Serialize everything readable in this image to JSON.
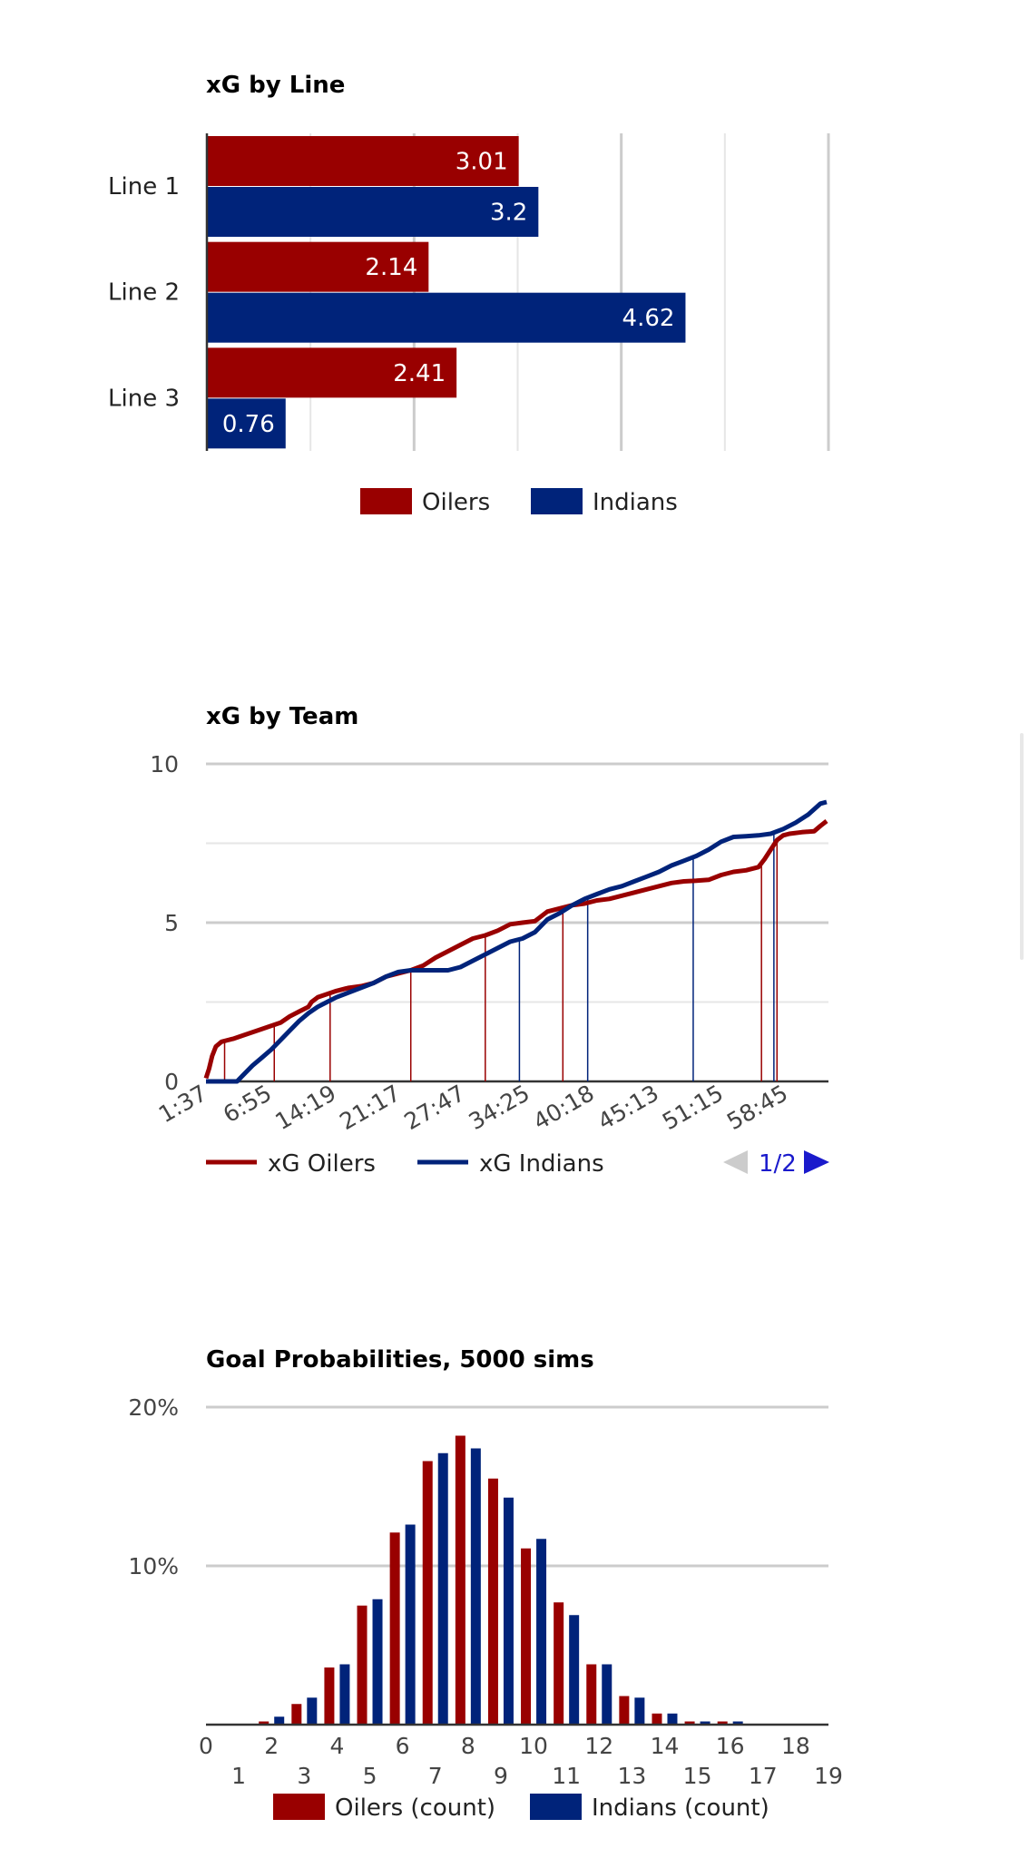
{
  "colors": {
    "oilers": "#990000",
    "indians": "#00237a",
    "grid": "#cccccc",
    "grid_minor": "#e6e6e6",
    "pager_active": "#1a1acc",
    "pager_disabled": "#cccccc"
  },
  "charts": {
    "line_chart": {
      "title": "xG by Line",
      "legend": [
        "Oilers",
        "Indians"
      ]
    },
    "team_chart": {
      "title": "xG by Team",
      "legend": [
        "xG Oilers",
        "xG Indians"
      ],
      "pager": {
        "label": "1/2",
        "prev_icon": "triangle-left-icon",
        "next_icon": "triangle-right-icon"
      }
    },
    "goal_chart": {
      "title": "Goal Probabilities, 5000 sims",
      "legend": [
        "Oilers (count)",
        "Indians (count)"
      ]
    }
  },
  "chart_data": [
    {
      "type": "bar",
      "orientation": "horizontal",
      "title": "xG by Line",
      "categories": [
        "Line 1",
        "Line 2",
        "Line 3"
      ],
      "series": [
        {
          "name": "Oilers",
          "values": [
            3.01,
            2.14,
            2.41
          ]
        },
        {
          "name": "Indians",
          "values": [
            3.2,
            4.62,
            0.76
          ]
        }
      ],
      "xlim": [
        0,
        6
      ],
      "grid": true,
      "legend_position": "bottom"
    },
    {
      "type": "line",
      "title": "xG by Team",
      "x_tick_labels": [
        "1:37",
        "6:55",
        "14:19",
        "21:17",
        "27:47",
        "34:25",
        "40:18",
        "45:13",
        "51:15",
        "58:45"
      ],
      "ylim": [
        0,
        10
      ],
      "y_ticks": [
        0,
        5,
        10
      ],
      "grid": true,
      "legend_position": "bottom",
      "series": [
        {
          "name": "xG Oilers",
          "points": [
            [
              0,
              0.1
            ],
            [
              0.5,
              0.4
            ],
            [
              1,
              0.8
            ],
            [
              1.6,
              1.1
            ],
            [
              2.5,
              1.25
            ],
            [
              3.5,
              1.3
            ],
            [
              4.5,
              1.35
            ],
            [
              6,
              1.45
            ],
            [
              7.5,
              1.55
            ],
            [
              9,
              1.65
            ],
            [
              10.5,
              1.75
            ],
            [
              12,
              1.85
            ],
            [
              13.5,
              2.05
            ],
            [
              15,
              2.2
            ],
            [
              16.5,
              2.35
            ],
            [
              17,
              2.5
            ],
            [
              18,
              2.65
            ],
            [
              19.5,
              2.75
            ],
            [
              21,
              2.85
            ],
            [
              23,
              2.95
            ],
            [
              25,
              3.0
            ],
            [
              27,
              3.1
            ],
            [
              29,
              3.3
            ],
            [
              31,
              3.4
            ],
            [
              33,
              3.5
            ],
            [
              35,
              3.65
            ],
            [
              37,
              3.9
            ],
            [
              39,
              4.1
            ],
            [
              41,
              4.3
            ],
            [
              43,
              4.5
            ],
            [
              45,
              4.6
            ],
            [
              47,
              4.75
            ],
            [
              49,
              4.95
            ],
            [
              51,
              5.0
            ],
            [
              53,
              5.05
            ],
            [
              55,
              5.35
            ],
            [
              57,
              5.45
            ],
            [
              59,
              5.55
            ],
            [
              61,
              5.6
            ],
            [
              63,
              5.7
            ],
            [
              65,
              5.75
            ],
            [
              67,
              5.85
            ],
            [
              69,
              5.95
            ],
            [
              71,
              6.05
            ],
            [
              73,
              6.15
            ],
            [
              75,
              6.25
            ],
            [
              77,
              6.3
            ],
            [
              79,
              6.32
            ],
            [
              81,
              6.35
            ],
            [
              83,
              6.5
            ],
            [
              85,
              6.6
            ],
            [
              87,
              6.65
            ],
            [
              89,
              6.75
            ],
            [
              90,
              7.0
            ],
            [
              91,
              7.3
            ],
            [
              92,
              7.6
            ],
            [
              93,
              7.75
            ],
            [
              94,
              7.8
            ],
            [
              96,
              7.85
            ],
            [
              98,
              7.88
            ],
            [
              99,
              8.05
            ],
            [
              100,
              8.2
            ]
          ]
        },
        {
          "name": "xG Indians",
          "points": [
            [
              0,
              0.0
            ],
            [
              3,
              0.0
            ],
            [
              5,
              0.0
            ],
            [
              6,
              0.2
            ],
            [
              7.5,
              0.5
            ],
            [
              9,
              0.75
            ],
            [
              10.5,
              1.0
            ],
            [
              12,
              1.3
            ],
            [
              13.5,
              1.6
            ],
            [
              15,
              1.9
            ],
            [
              16.5,
              2.15
            ],
            [
              18,
              2.35
            ],
            [
              19.5,
              2.5
            ],
            [
              21,
              2.65
            ],
            [
              23,
              2.8
            ],
            [
              25,
              2.95
            ],
            [
              27,
              3.1
            ],
            [
              29,
              3.3
            ],
            [
              31,
              3.45
            ],
            [
              33,
              3.5
            ],
            [
              35,
              3.5
            ],
            [
              37,
              3.5
            ],
            [
              39,
              3.5
            ],
            [
              41,
              3.6
            ],
            [
              43,
              3.8
            ],
            [
              45,
              4.0
            ],
            [
              47,
              4.2
            ],
            [
              49,
              4.4
            ],
            [
              51,
              4.5
            ],
            [
              53,
              4.7
            ],
            [
              55,
              5.1
            ],
            [
              57,
              5.3
            ],
            [
              59,
              5.55
            ],
            [
              61,
              5.75
            ],
            [
              63,
              5.9
            ],
            [
              65,
              6.05
            ],
            [
              67,
              6.15
            ],
            [
              69,
              6.3
            ],
            [
              71,
              6.45
            ],
            [
              73,
              6.6
            ],
            [
              75,
              6.8
            ],
            [
              77,
              6.95
            ],
            [
              79,
              7.1
            ],
            [
              81,
              7.3
            ],
            [
              83,
              7.55
            ],
            [
              85,
              7.7
            ],
            [
              87,
              7.72
            ],
            [
              89,
              7.75
            ],
            [
              91,
              7.8
            ],
            [
              93,
              7.95
            ],
            [
              95,
              8.15
            ],
            [
              97,
              8.4
            ],
            [
              99,
              8.75
            ],
            [
              100,
              8.8
            ]
          ]
        }
      ],
      "goal_markers": [
        {
          "team": "xG Oilers",
          "x": 3
        },
        {
          "team": "xG Oilers",
          "x": 11
        },
        {
          "team": "xG Oilers",
          "x": 20
        },
        {
          "team": "xG Oilers",
          "x": 33
        },
        {
          "team": "xG Oilers",
          "x": 45
        },
        {
          "team": "xG Indians",
          "x": 50.5
        },
        {
          "team": "xG Oilers",
          "x": 57.5
        },
        {
          "team": "xG Indians",
          "x": 61.5
        },
        {
          "team": "xG Indians",
          "x": 78.5
        },
        {
          "team": "xG Oilers",
          "x": 89.5
        },
        {
          "team": "xG Indians",
          "x": 91.5
        },
        {
          "team": "xG Oilers",
          "x": 92
        }
      ]
    },
    {
      "type": "bar",
      "title": "Goal Probabilities, 5000 sims",
      "categories": [
        "0",
        "1",
        "2",
        "3",
        "4",
        "5",
        "6",
        "7",
        "8",
        "9",
        "10",
        "11",
        "12",
        "13",
        "14",
        "15",
        "16",
        "17",
        "18",
        "19"
      ],
      "y_tick_labels": [
        "10%",
        "20%"
      ],
      "ylim": [
        0,
        20
      ],
      "grid": true,
      "legend_position": "bottom",
      "series": [
        {
          "name": "Oilers (count)",
          "values": [
            0,
            0,
            0.2,
            1.3,
            3.6,
            7.5,
            12.1,
            16.6,
            18.2,
            15.5,
            11.1,
            7.7,
            3.8,
            1.8,
            0.7,
            0.2,
            0.2,
            0,
            0,
            0
          ]
        },
        {
          "name": "Indians (count)",
          "values": [
            0,
            0,
            0.5,
            1.7,
            3.8,
            7.9,
            12.6,
            17.1,
            17.4,
            14.3,
            11.7,
            6.9,
            3.8,
            1.7,
            0.7,
            0.2,
            0.2,
            0,
            0,
            0
          ]
        }
      ]
    }
  ]
}
